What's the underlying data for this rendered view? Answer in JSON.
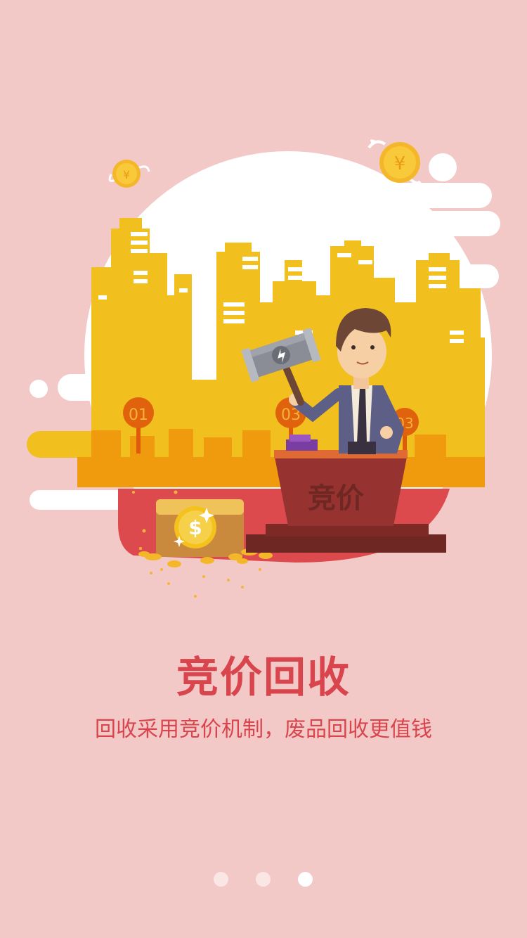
{
  "illustration": {
    "podium_label": "竞价",
    "markers": [
      "01",
      "03",
      "03"
    ],
    "chest_symbol": "$"
  },
  "onboarding": {
    "title": "竞价回收",
    "subtitle": "回收采用竞价机制，废品回收更值钱"
  },
  "pager": {
    "count": 3,
    "active_index": 2
  },
  "colors": {
    "background": "#f3c9c8",
    "accent": "#d9454d",
    "city": "#f1c01f",
    "ground": "#f09a0e",
    "podium": "#963230"
  }
}
